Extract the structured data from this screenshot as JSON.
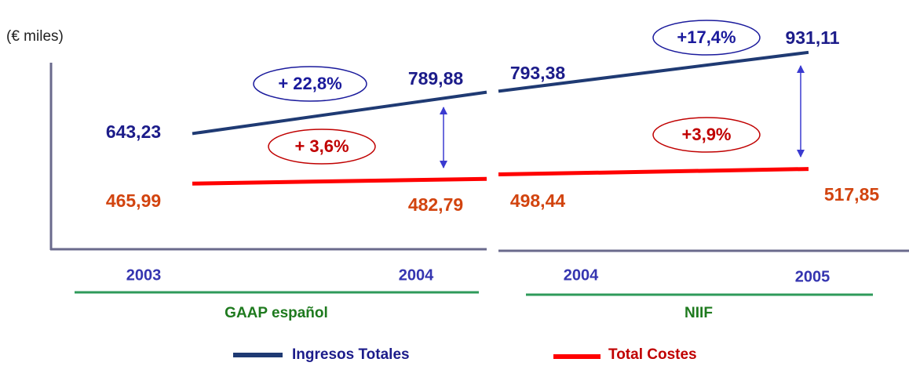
{
  "chart_data": [
    {
      "type": "line",
      "y_label": "(€ miles)",
      "group_label": "GAAP español",
      "categories": [
        "2003",
        "2004"
      ],
      "series": [
        {
          "name": "Ingresos Totales",
          "color": "#1f3a73",
          "label_color": "#1c1c8a",
          "values": [
            643.23,
            789.88
          ],
          "value_labels": [
            "643,23",
            "789,88"
          ]
        },
        {
          "name": "Total Costes",
          "color": "#ff0000",
          "label_color": "#d2440f",
          "values": [
            465.99,
            482.79
          ],
          "value_labels": [
            "465,99",
            "482,79"
          ]
        }
      ],
      "annotations": [
        "+ 22,8%",
        "+ 3,6%"
      ]
    },
    {
      "type": "line",
      "group_label": "NIIF",
      "categories": [
        "2004",
        "2005"
      ],
      "series": [
        {
          "name": "Ingresos Totales",
          "color": "#1f3a73",
          "label_color": "#1c1c8a",
          "values": [
            793.38,
            931.11
          ],
          "value_labels": [
            "793,38",
            "931,11"
          ]
        },
        {
          "name": "Total Costes",
          "color": "#ff0000",
          "label_color": "#d2440f",
          "values": [
            498.44,
            517.85
          ],
          "value_labels": [
            "498,44",
            "517,85"
          ]
        }
      ],
      "annotations": [
        "+17,4%",
        "+3,9%"
      ]
    }
  ]
}
